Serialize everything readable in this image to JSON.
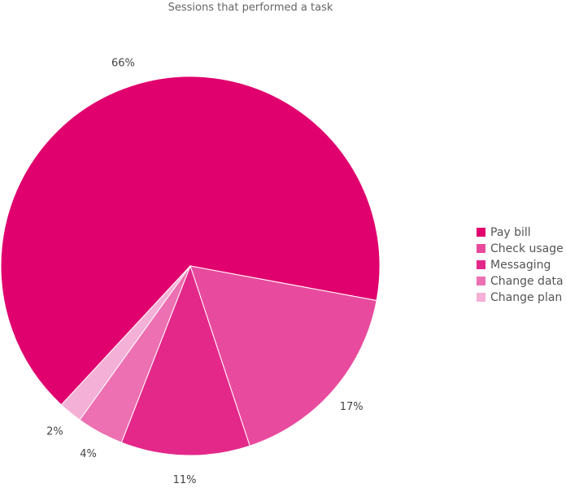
{
  "chart_data": {
    "type": "pie",
    "title": "Sessions that performed a task",
    "categories": [
      "Pay bill",
      "Check usage",
      "Messaging",
      "Change data",
      "Change plan"
    ],
    "values": [
      66,
      17,
      11,
      4,
      2
    ],
    "labels": [
      "66%",
      "17%",
      "11%",
      "4%",
      "2%"
    ],
    "colors": [
      "#e0006e",
      "#e84b9e",
      "#e3288a",
      "#ec70b2",
      "#f4b0d6"
    ],
    "legend_position": "right"
  }
}
